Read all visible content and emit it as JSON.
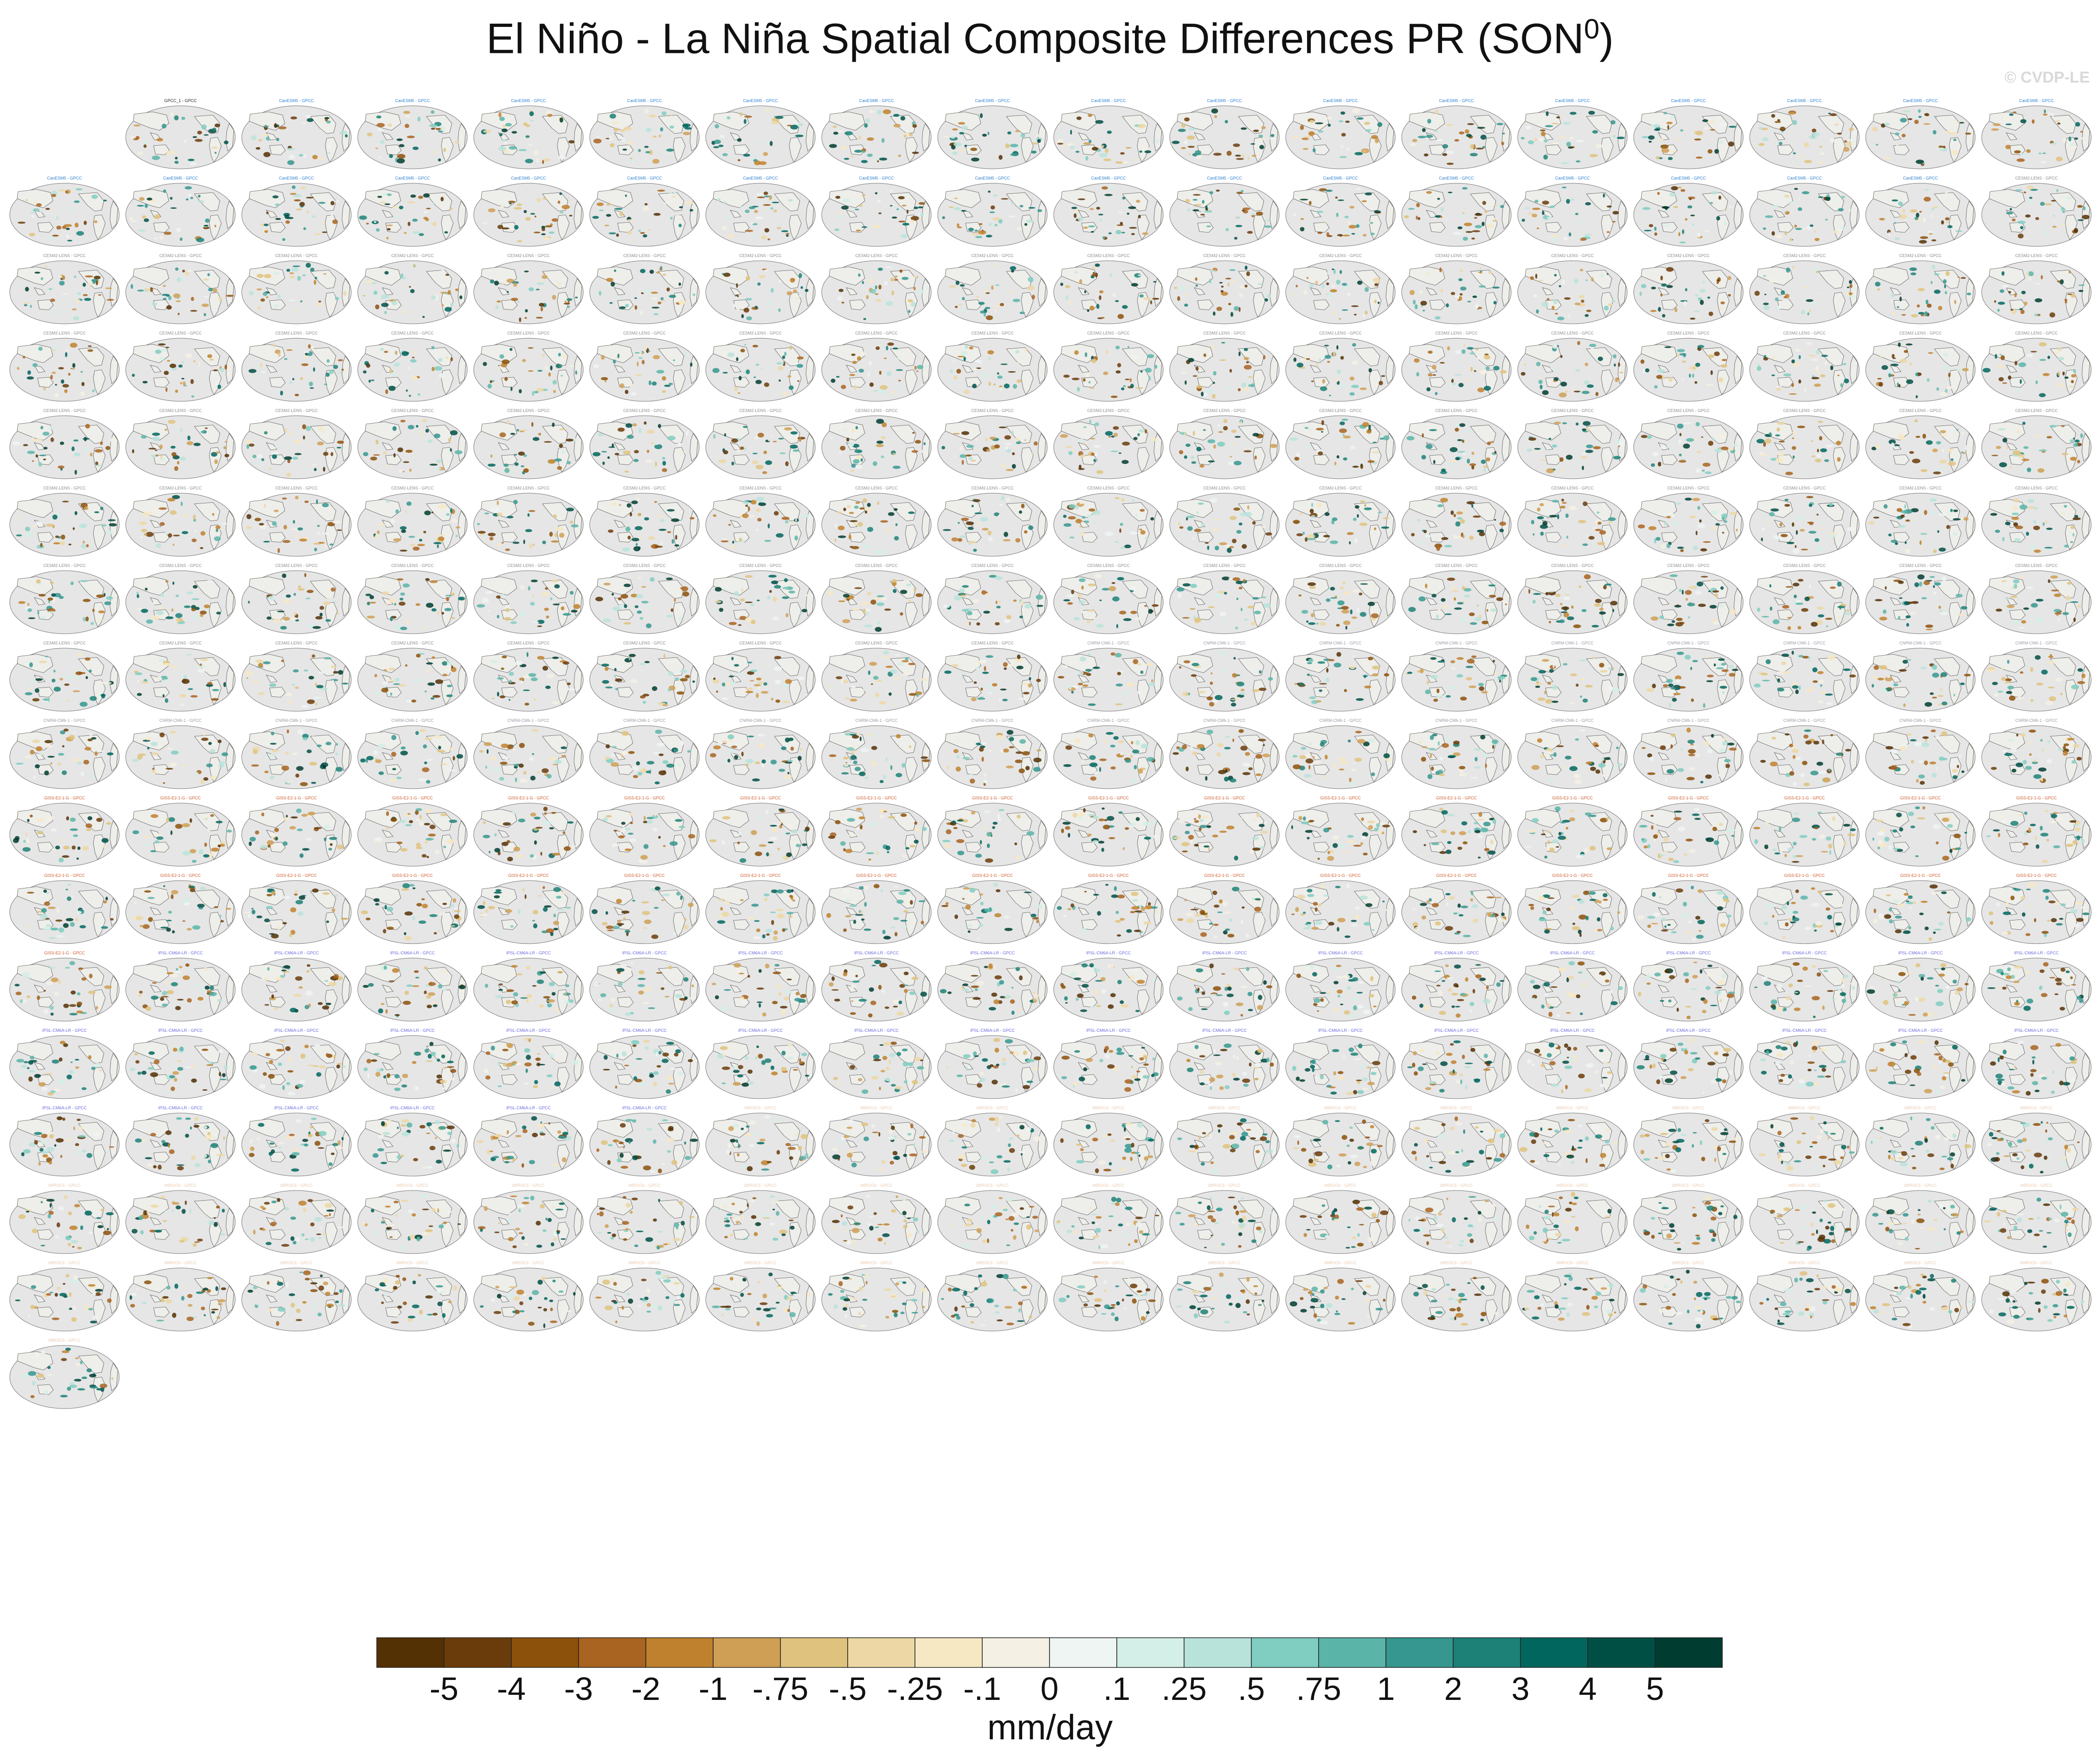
{
  "title": "El Niño - La Niña Spatial Composite Differences PR (SON",
  "title_superscript": "0",
  "title_close": ")",
  "watermark": "© CVDP-LE",
  "reference_panel_title": "GPCC_1 - GPCC",
  "single_last_panel_title": "MIROC6 - GPCC",
  "model_groups": [
    {
      "name": "CanESM5",
      "title": "CanESM5 - GPCC",
      "count": 33,
      "color": "#2a7fd0"
    },
    {
      "name": "CESM2-LENS",
      "title": "CESM2-LENS - GPCC",
      "count": 100,
      "color": "#8a8a8a"
    },
    {
      "name": "CNRM-CM6-1",
      "title": "CNRM-CM6-1 - GPCC",
      "count": 27,
      "color": "#9a9aa8"
    },
    {
      "name": "GISS-E2-1-G",
      "title": "GISS-E2-1-G - GPCC",
      "count": 37,
      "color": "#cc5a2a"
    },
    {
      "name": "IPSL-CM6A-LR",
      "title": "IPSL-CM6A-LR - GPCC",
      "count": 41,
      "color": "#6a6ae0"
    },
    {
      "name": "MIROC6",
      "title": "MIROC6 - GPCC",
      "count": 49,
      "color": "#e8c8b0"
    }
  ],
  "colorbar": {
    "units": "mm/day",
    "colors": [
      "#543005",
      "#6b3c0b",
      "#8c510a",
      "#a86420",
      "#bf812d",
      "#cf9f55",
      "#dfc27d",
      "#ecd7a5",
      "#f6e8c3",
      "#f5f0e4",
      "#eef5f3",
      "#d4eee8",
      "#b8e3db",
      "#80cdc1",
      "#5ab4a8",
      "#35978f",
      "#1d8177",
      "#01665e",
      "#004f45",
      "#003c30"
    ],
    "labels": [
      "-5",
      "-4",
      "-3",
      "-2",
      "-1",
      "-.75",
      "-.5",
      "-.25",
      "-.1",
      "0",
      ".1",
      ".25",
      ".5",
      ".75",
      "1",
      "2",
      "3",
      "4",
      "5"
    ]
  }
}
